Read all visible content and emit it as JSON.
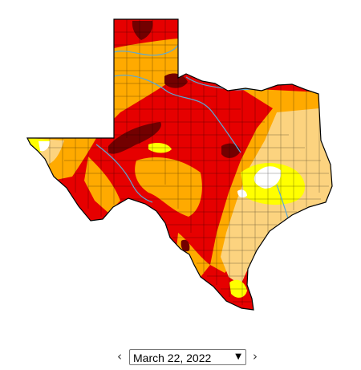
{
  "map": {
    "region": "Texas",
    "colors": {
      "none": "#ffffff",
      "d0": "#ffff00",
      "d1": "#fcd37f",
      "d2": "#ffaa00",
      "d3": "#e60000",
      "d4": "#730000",
      "outline": "#000000",
      "river": "#5aa9d6"
    }
  },
  "date_nav": {
    "prev_glyph": "‹",
    "next_glyph": "›",
    "selected_date": "March 22, 2022",
    "caret": "▼"
  }
}
